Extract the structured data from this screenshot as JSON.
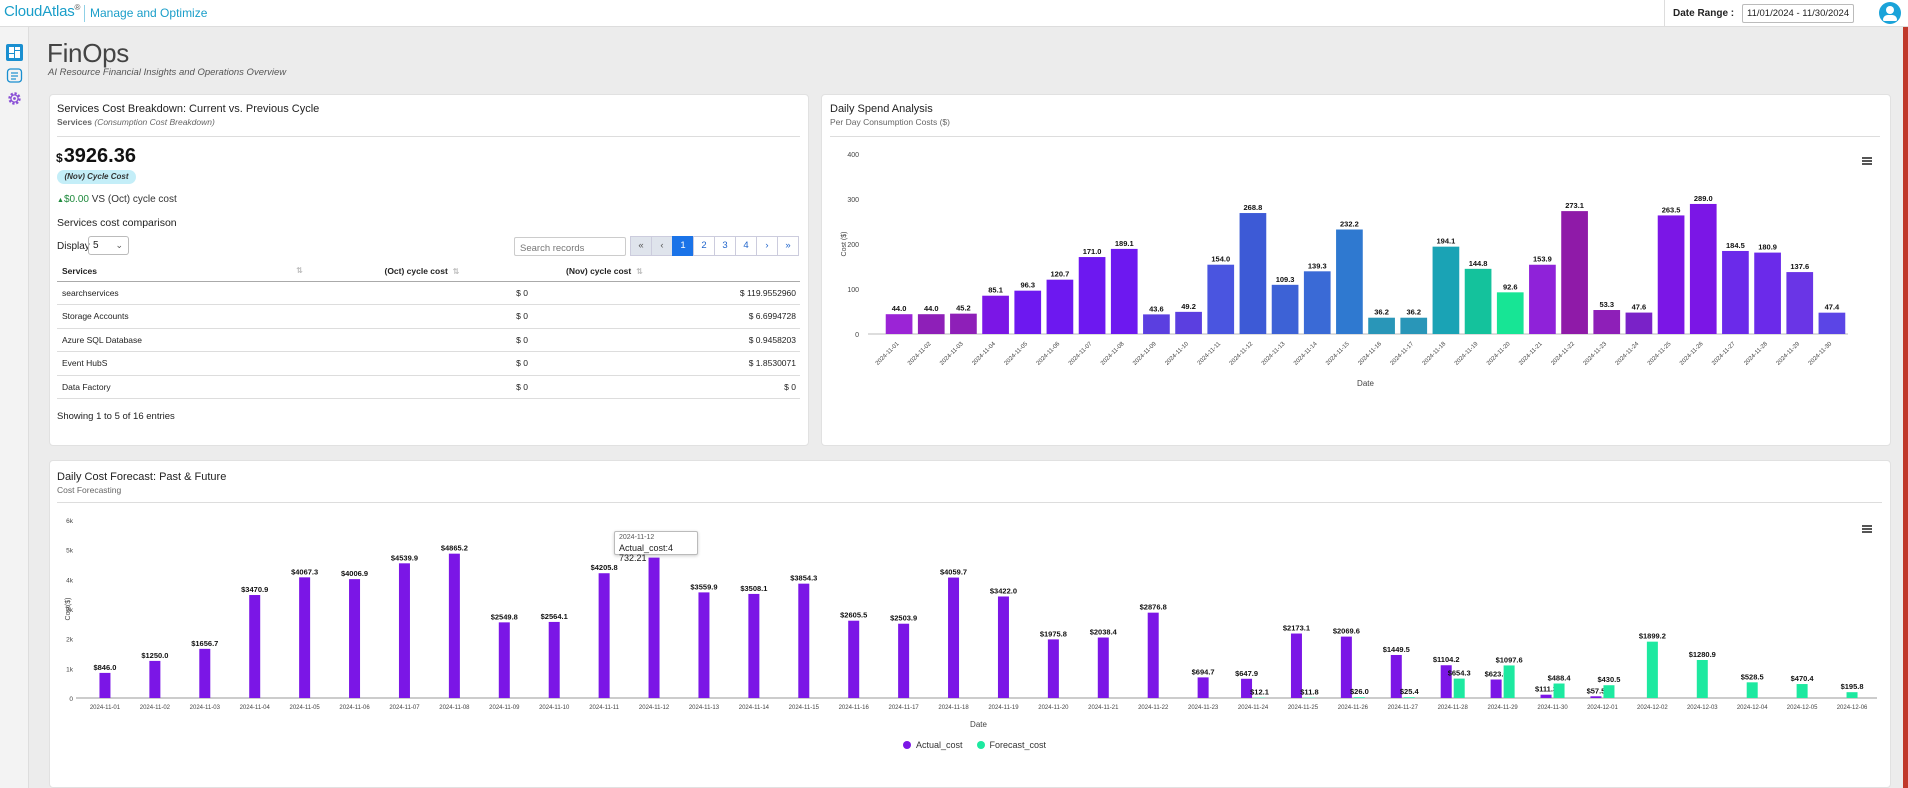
{
  "header": {
    "brand": "CloudAtlas",
    "brand_mark": "®",
    "brand_sub": "Manage and Optimize",
    "date_range_label": "Date Range :",
    "date_range_value": "11/01/2024 - 11/30/2024"
  },
  "sidebar": {
    "items": [
      {
        "icon": "dashboard-icon"
      },
      {
        "icon": "report-icon"
      },
      {
        "icon": "settings-gear-icon"
      }
    ]
  },
  "page": {
    "title": "FinOps",
    "subtitle": "AI Resource Financial Insights and Operations Overview"
  },
  "services_card": {
    "title": "Services Cost Breakdown: Current vs. Previous Cycle",
    "sub_main": "Services",
    "sub_italic": "(Consumption Cost Breakdown)",
    "currency": "$",
    "total": "3926.36",
    "cycle_pill": "(Nov) Cycle Cost",
    "delta_arrow": "▲",
    "delta_value": "$0.00",
    "delta_text": "VS (Oct) cycle cost",
    "section_title": "Services cost comparison",
    "display_label": "Display",
    "display_value": "5",
    "search_placeholder": "Search records",
    "pager": [
      "«",
      "‹",
      "1",
      "2",
      "3",
      "4",
      "›",
      "»"
    ],
    "pager_active": "1",
    "columns": [
      "Services",
      "(Oct) cycle cost",
      "(Nov) cycle cost"
    ],
    "rows": [
      {
        "service": "searchservices",
        "oct": "$ 0",
        "nov": "$ 119.9552960"
      },
      {
        "service": "Storage Accounts",
        "oct": "$ 0",
        "nov": "$ 6.6994728"
      },
      {
        "service": "Azure SQL Database",
        "oct": "$ 0",
        "nov": "$ 0.9458203"
      },
      {
        "service": "Event HubS",
        "oct": "$ 0",
        "nov": "$ 1.8530071"
      },
      {
        "service": "Data Factory",
        "oct": "$ 0",
        "nov": "$ 0"
      }
    ],
    "showing": "Showing 1 to 5 of 16 entries"
  },
  "daily_card": {
    "title": "Daily Spend Analysis",
    "subtitle": "Per Day Consumption Costs ($)"
  },
  "forecast_card": {
    "title": "Daily Cost Forecast: Past & Future",
    "subtitle": "Cost Forecasting",
    "tooltip_date": "2024-11-12",
    "tooltip_value": "Actual_cost:4 732.21"
  },
  "chart_data": [
    {
      "type": "bar",
      "xlabel": "Date",
      "ylabel": "Cost ($)",
      "ylim": [
        0,
        400
      ],
      "yticks": [
        0,
        100,
        200,
        300,
        400
      ],
      "grid": false,
      "categories": [
        "2024-11-01",
        "2024-11-02",
        "2024-11-03",
        "2024-11-04",
        "2024-11-05",
        "2024-11-06",
        "2024-11-07",
        "2024-11-08",
        "2024-11-09",
        "2024-11-10",
        "2024-11-11",
        "2024-11-12",
        "2024-11-13",
        "2024-11-14",
        "2024-11-15",
        "2024-11-16",
        "2024-11-17",
        "2024-11-18",
        "2024-11-19",
        "2024-11-20",
        "2024-11-21",
        "2024-11-22",
        "2024-11-23",
        "2024-11-24",
        "2024-11-25",
        "2024-11-26",
        "2024-11-27",
        "2024-11-28",
        "2024-11-29",
        "2024-11-30"
      ],
      "values": [
        44.0,
        44.0,
        45.2,
        85.1,
        96.3,
        120.7,
        171.0,
        189.1,
        43.6,
        49.2,
        154.0,
        268.8,
        109.3,
        139.3,
        232.2,
        36.2,
        36.2,
        194.1,
        144.8,
        92.6,
        153.9,
        273.1,
        53.3,
        47.6,
        263.5,
        289.0,
        184.5,
        180.9,
        137.6,
        47.4
      ],
      "labels": [
        "44.0",
        "44.0",
        "45.2",
        "85.1",
        "96.3",
        "120.7",
        "171.0",
        "189.1",
        "43.6",
        "49.2",
        "154.0",
        "268.8",
        "109.3",
        "139.3",
        "232.2",
        "36.2",
        "36.2",
        "194.1",
        "144.8",
        "92.6",
        "153.9",
        "273.1",
        "53.3",
        "47.6",
        "263.5",
        "289.0",
        "184.5",
        "180.9",
        "137.6",
        "47.4"
      ],
      "colors": [
        "#9b24d6",
        "#8e1fb8",
        "#8e1fb8",
        "#7b16e6",
        "#6d18f0",
        "#6d18f0",
        "#6d18f0",
        "#6d18f0",
        "#5b3fe0",
        "#5b3fe0",
        "#4a55e0",
        "#3d5ad6",
        "#3d62d6",
        "#3a6ad6",
        "#2f79d0",
        "#2996b8",
        "#2996b8",
        "#1aa3b5",
        "#14c29c",
        "#17e595",
        "#8f22d9",
        "#8f1aa8",
        "#8e1fb8",
        "#7a22c8",
        "#7b16e6",
        "#7b16e6",
        "#6b2aea",
        "#6b2aea",
        "#6a35e6",
        "#5b45e6"
      ]
    },
    {
      "type": "bar",
      "xlabel": "Date",
      "ylabel": "Cost($)",
      "ylim": [
        0,
        6000
      ],
      "yticks": [
        0,
        1000,
        2000,
        3000,
        4000,
        5000,
        6000
      ],
      "ytick_labels": [
        "0",
        "1k",
        "2k",
        "3k",
        "4k",
        "5k",
        "6k"
      ],
      "legend_position": "bottom",
      "categories": [
        "2024-11-01",
        "2024-11-02",
        "2024-11-03",
        "2024-11-04",
        "2024-11-05",
        "2024-11-06",
        "2024-11-07",
        "2024-11-08",
        "2024-11-09",
        "2024-11-10",
        "2024-11-11",
        "2024-11-12",
        "2024-11-13",
        "2024-11-14",
        "2024-11-15",
        "2024-11-16",
        "2024-11-17",
        "2024-11-18",
        "2024-11-19",
        "2024-11-20",
        "2024-11-21",
        "2024-11-22",
        "2024-11-23",
        "2024-11-24",
        "2024-11-25",
        "2024-11-26",
        "2024-11-27",
        "2024-11-28",
        "2024-11-29",
        "2024-11-30",
        "2024-12-01",
        "2024-12-02",
        "2024-12-03",
        "2024-12-04",
        "2024-12-05",
        "2024-12-06"
      ],
      "series": [
        {
          "name": "Actual_cost",
          "color": "#7b16e6",
          "values": [
            846.0,
            1250.0,
            1656.7,
            3470.9,
            4067.3,
            4006.9,
            4539.9,
            4865.2,
            2549.8,
            2564.1,
            4205.8,
            4732.21,
            3559.9,
            3508.1,
            3854.3,
            2605.5,
            2503.9,
            4059.7,
            3422.0,
            1975.8,
            2038.4,
            2876.8,
            694.7,
            647.9,
            2173.1,
            2069.6,
            1449.5,
            1104.2,
            623.0,
            111.3,
            57.5,
            null,
            null,
            null,
            null,
            null
          ],
          "labels": [
            "$846.0",
            "$1250.0",
            "$1656.7",
            "$3470.9",
            "$4067.3",
            "$4006.9",
            "$4539.9",
            "$4865.2",
            "$2549.8",
            "$2564.1",
            "$4205.8",
            "",
            "$3559.9",
            "$3508.1",
            "$3854.3",
            "$2605.5",
            "$2503.9",
            "$4059.7",
            "$3422.0",
            "$1975.8",
            "$2038.4",
            "$2876.8",
            "$694.7",
            "$647.9",
            "$2173.1",
            "$2069.6",
            "$1449.5",
            "$1104.2",
            "$623.0",
            "$111.3",
            "$57.5",
            "",
            "",
            "",
            "",
            ""
          ]
        },
        {
          "name": "Forecast_cost",
          "color": "#1de9a0",
          "values": [
            null,
            null,
            null,
            null,
            null,
            null,
            null,
            null,
            null,
            null,
            null,
            null,
            null,
            null,
            null,
            null,
            null,
            null,
            null,
            null,
            null,
            null,
            null,
            12.1,
            11.8,
            26.0,
            25.4,
            654.3,
            1097.6,
            488.4,
            430.5,
            1899.2,
            1280.9,
            528.5,
            470.4,
            195.8
          ],
          "labels": [
            "",
            "",
            "",
            "",
            "",
            "",
            "",
            "",
            "",
            "",
            "",
            "",
            "",
            "",
            "",
            "",
            "",
            "",
            "",
            "",
            "",
            "",
            "",
            "$12.1",
            "$11.8",
            "$26.0",
            "$25.4",
            "$654.3",
            "$1097.6",
            "$488.4",
            "$430.5",
            "$1899.2",
            "$1280.9",
            "$528.5",
            "$470.4",
            "$195.8"
          ]
        }
      ]
    }
  ]
}
